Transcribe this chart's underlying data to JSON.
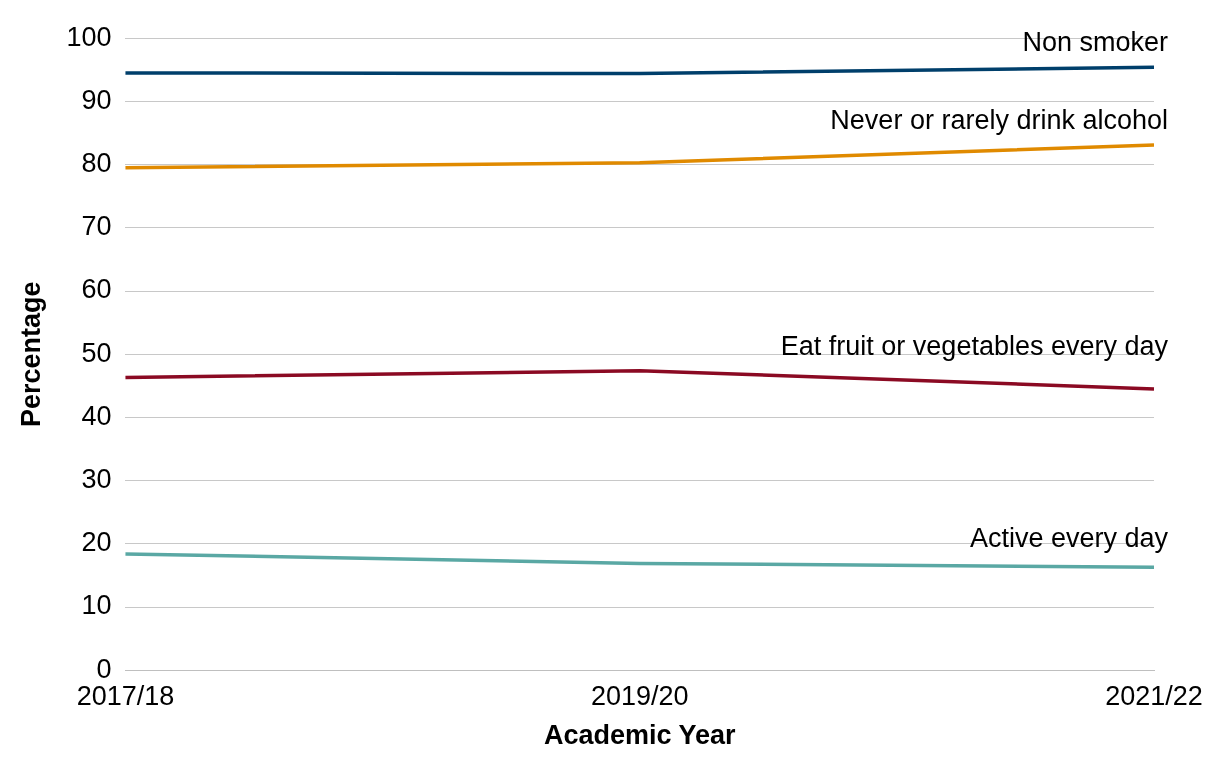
{
  "chart_data": {
    "type": "line",
    "xlabel": "Academic Year",
    "ylabel": "Percentage",
    "categories": [
      "2017/18",
      "2019/20",
      "2021/22"
    ],
    "ylim": [
      0,
      100
    ],
    "yticks": [
      0,
      10,
      20,
      30,
      40,
      50,
      60,
      70,
      80,
      90,
      100
    ],
    "grid": "y",
    "legend": false,
    "marker": "none",
    "line_style": "solid",
    "series": [
      {
        "name": "Non smoker",
        "color": "#003f6b",
        "values": [
          94.5,
          94.4,
          95.4
        ]
      },
      {
        "name": "Never or rarely drink alcohol",
        "color": "#e08a00",
        "values": [
          79.5,
          80.3,
          83.1
        ]
      },
      {
        "name": "Eat fruit or vegetables every day",
        "color": "#8b0a23",
        "values": [
          46.3,
          47.4,
          44.5
        ]
      },
      {
        "name": "Active every day",
        "color": "#5aa8a4",
        "values": [
          18.4,
          16.9,
          16.3
        ]
      }
    ]
  }
}
